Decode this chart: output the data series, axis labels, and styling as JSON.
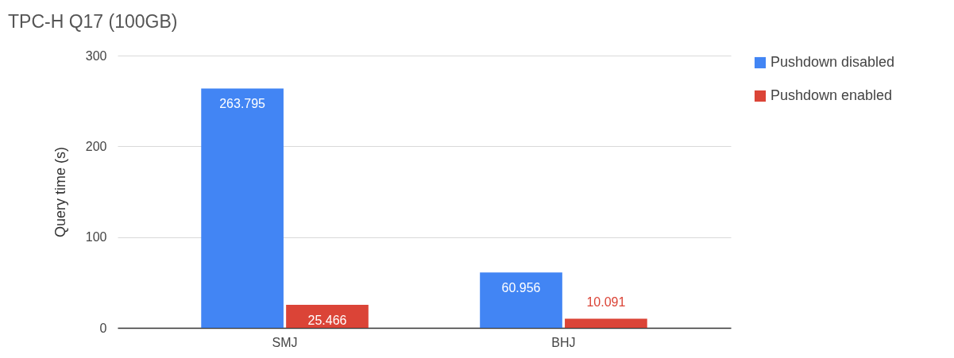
{
  "chart_data": {
    "type": "bar",
    "title": "TPC-H Q17 (100GB)",
    "ylabel": "Query time (s)",
    "categories": [
      "SMJ",
      "BHJ"
    ],
    "series": [
      {
        "name": "Pushdown disabled",
        "color": "#4285f4",
        "values": [
          263.795,
          60.956
        ]
      },
      {
        "name": "Pushdown enabled",
        "color": "#db4437",
        "values": [
          25.466,
          10.091
        ]
      }
    ],
    "ylim": [
      0,
      300
    ],
    "yticks": [
      0,
      100,
      200,
      300
    ],
    "grid": "y",
    "legend": "top right",
    "data_labels": true
  }
}
